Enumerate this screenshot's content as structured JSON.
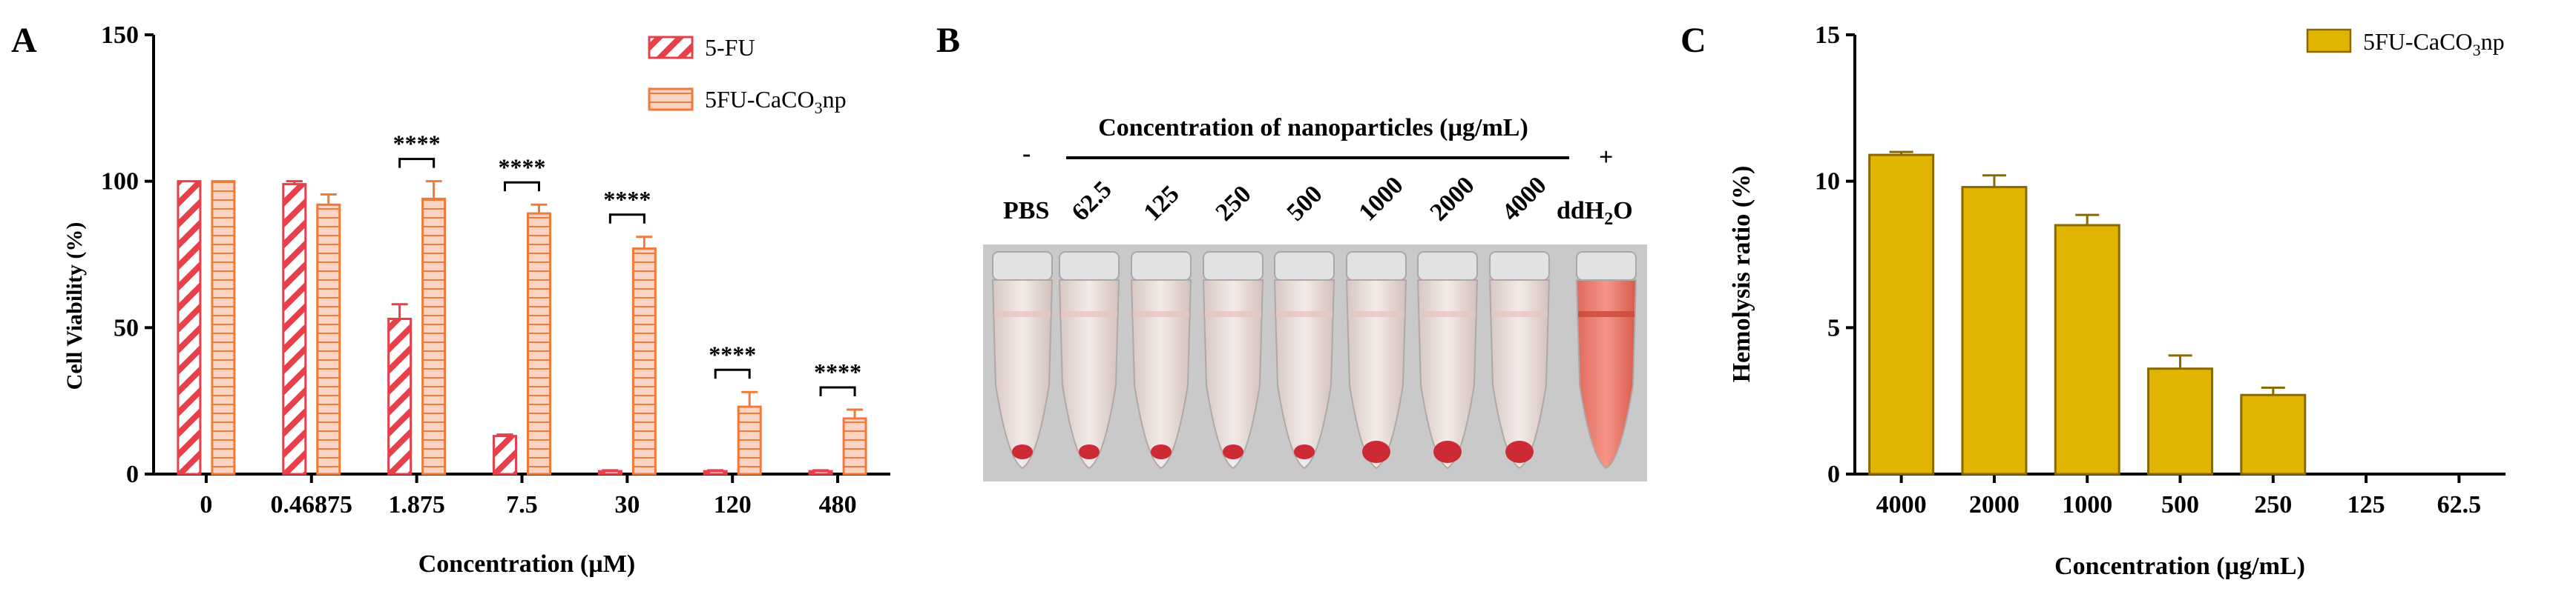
{
  "figure": {
    "panel_a_letter": "A",
    "panel_b_letter": "B",
    "panel_c_letter": "C"
  },
  "chart_data": [
    {
      "panel": "A",
      "type": "bar",
      "ylabel": "Cell Viability (%)",
      "xlabel": "Concentration (µM)",
      "ylim": [
        0,
        150
      ],
      "yticks": [
        0,
        50,
        100,
        150
      ],
      "categories": [
        "0",
        "0.46875",
        "1.875",
        "7.5",
        "30",
        "120",
        "480"
      ],
      "series": [
        {
          "name": "5-FU",
          "values": [
            100,
            99,
            53,
            13,
            1,
            1,
            1
          ],
          "errors": [
            0,
            1,
            5,
            0.5,
            0.3,
            0.3,
            0.3
          ],
          "color": "#e8404a",
          "pattern": "diagonal"
        },
        {
          "name": "5FU-CaCO3np",
          "name_main": "5FU-CaCO",
          "name_sub": "3",
          "name_tail": "np",
          "values": [
            100,
            92,
            94,
            89,
            77,
            23,
            19
          ],
          "errors": [
            0,
            3.5,
            6,
            3,
            4,
            5,
            3
          ],
          "color": "#f07a3a",
          "pattern": "horizontal"
        }
      ],
      "significance": [
        {
          "category_index": 2,
          "label": "****"
        },
        {
          "category_index": 3,
          "label": "****"
        },
        {
          "category_index": 4,
          "label": "****"
        },
        {
          "category_index": 5,
          "label": "****"
        },
        {
          "category_index": 6,
          "label": "****"
        }
      ],
      "legend_position": "top-right"
    },
    {
      "panel": "C",
      "type": "bar",
      "ylabel": "Hemolysis ratio (%)",
      "xlabel": "Concentration (µg/mL)",
      "ylim": [
        0,
        15
      ],
      "yticks": [
        0,
        5,
        10,
        15
      ],
      "categories": [
        "4000",
        "2000",
        "1000",
        "500",
        "250",
        "125",
        "62.5"
      ],
      "series": [
        {
          "name": "5FU-CaCO3np",
          "name_main": "5FU-CaCO",
          "name_sub": "3",
          "name_tail": "np",
          "values": [
            10.9,
            9.8,
            8.5,
            3.6,
            2.7,
            0,
            0
          ],
          "errors": [
            0.05,
            0.35,
            0.3,
            0.4,
            0.2,
            0,
            0
          ],
          "color": "#e0b400"
        }
      ],
      "legend_position": "top-right"
    }
  ],
  "panel_b": {
    "header": "Concentration of nanoparticles (µg/mL)",
    "minus_sign": "-",
    "plus_sign": "+",
    "control_left": "PBS",
    "control_right_main": "ddH",
    "control_right_sub": "2",
    "control_right_tail": "O",
    "column_labels": [
      "62.5",
      "125",
      "250",
      "500",
      "1000",
      "2000",
      "4000"
    ],
    "photo_colors": {
      "background": "#c9c9c9",
      "blood": "#cc2a35",
      "lysed": "#e8574a"
    }
  }
}
